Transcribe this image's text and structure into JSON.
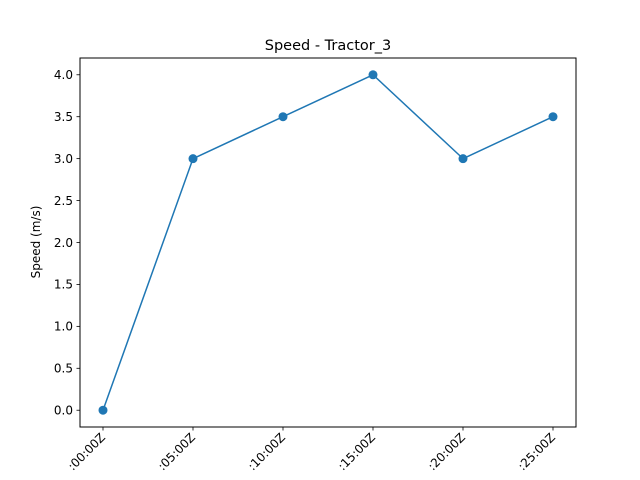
{
  "chart_data": {
    "type": "line",
    "title": "Speed - Tractor_3",
    "xlabel": "",
    "ylabel": "Speed (m/s)",
    "x": [
      ":00:00Z",
      ":05:00Z",
      ":10:00Z",
      ":15:00Z",
      ":20:00Z",
      ":25:00Z"
    ],
    "series": [
      {
        "values": [
          0.0,
          3.0,
          3.5,
          4.0,
          3.0,
          3.5
        ]
      }
    ],
    "yticks": [
      "0.0",
      "0.5",
      "1.0",
      "1.5",
      "2.0",
      "2.5",
      "3.0",
      "3.5",
      "4.0"
    ],
    "ylim": [
      -0.2,
      4.2
    ],
    "grid": false,
    "colors": {
      "line": "#1f77b4",
      "marker": "#1f77b4",
      "axes": "#000000"
    }
  }
}
